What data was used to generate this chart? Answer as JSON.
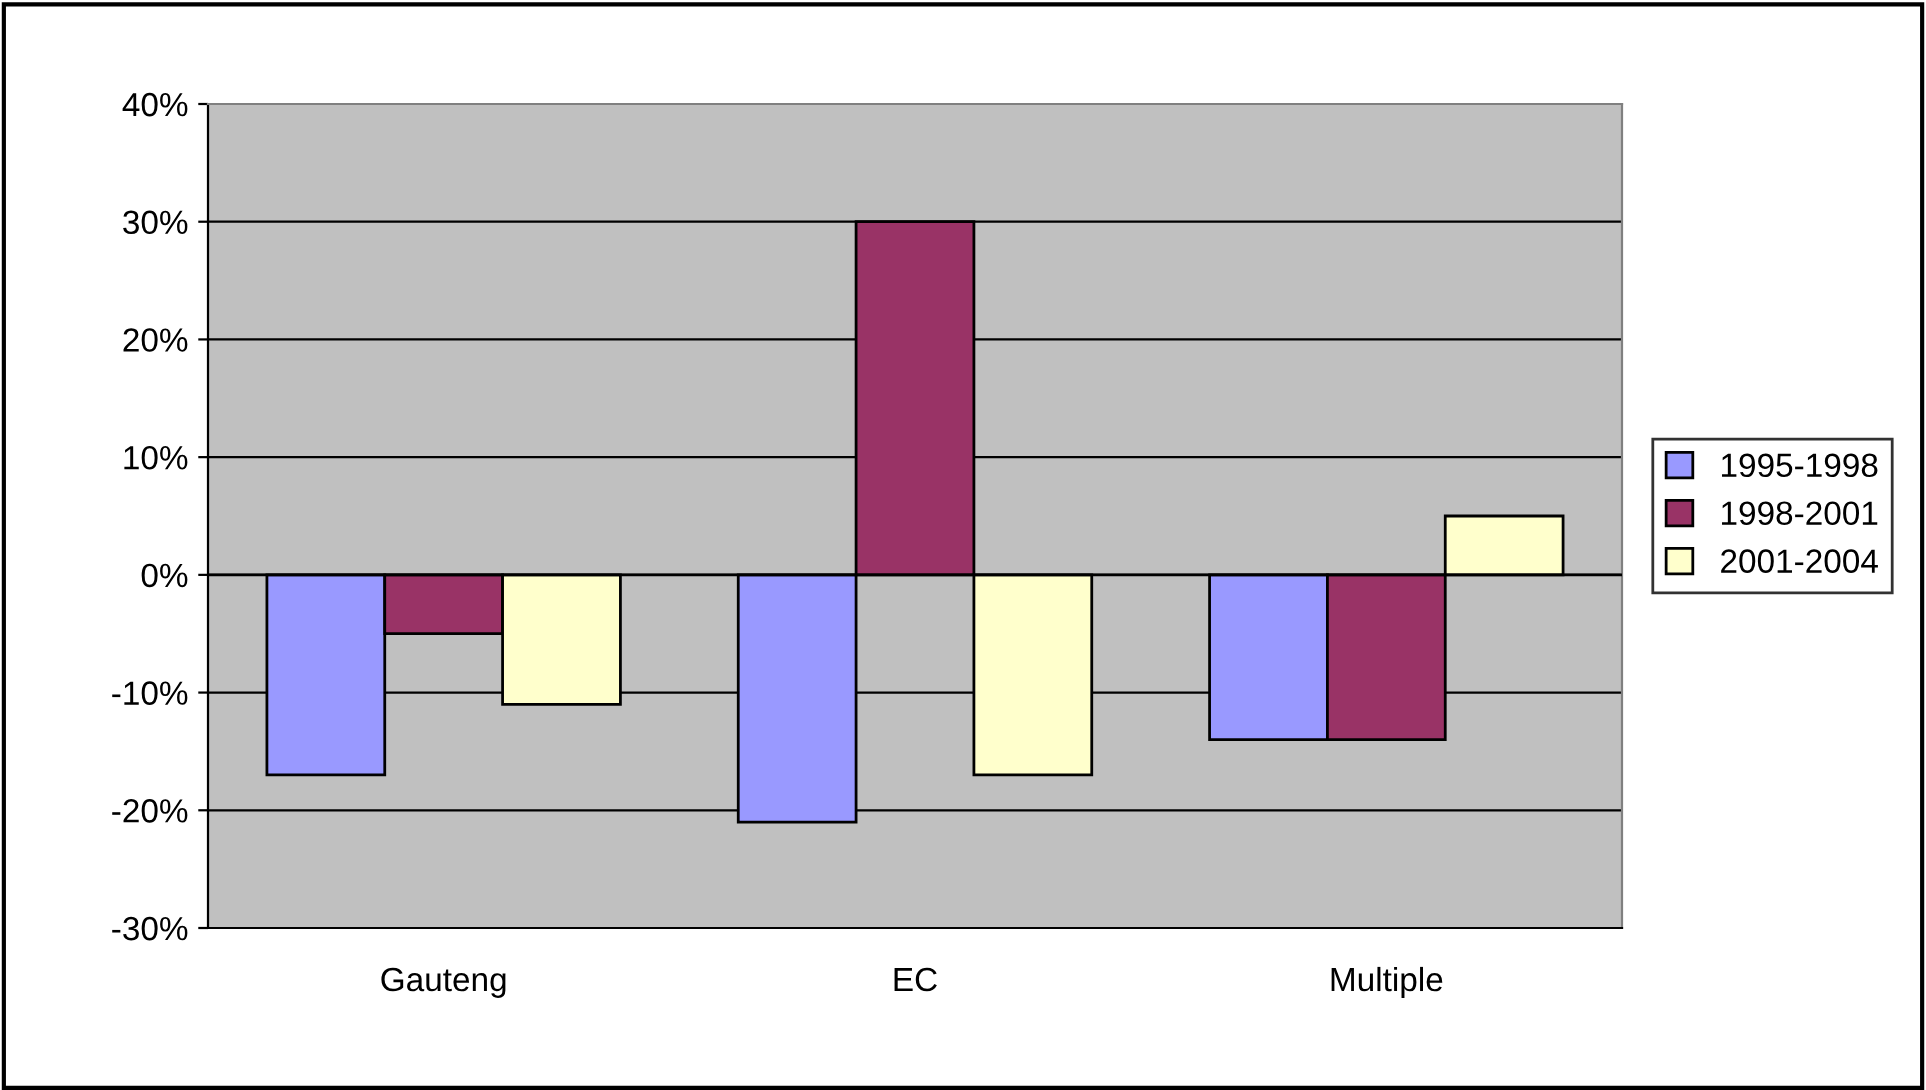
{
  "chart_data": {
    "type": "bar",
    "categories": [
      "Gauteng",
      "EC",
      "Multiple"
    ],
    "series": [
      {
        "name": "1995-1998",
        "color": "#9999ff",
        "values": [
          -17,
          -21,
          -14
        ]
      },
      {
        "name": "1998-2001",
        "color": "#993366",
        "values": [
          -5,
          30,
          -14
        ]
      },
      {
        "name": "2001-2004",
        "color": "#ffffcc",
        "values": [
          -11,
          -17,
          5
        ]
      }
    ],
    "ylim": [
      -30,
      40
    ],
    "yticks": [
      {
        "value": -30,
        "label": "-30%"
      },
      {
        "value": -20,
        "label": "-20%"
      },
      {
        "value": -10,
        "label": "-10%"
      },
      {
        "value": 0,
        "label": "0%"
      },
      {
        "value": 10,
        "label": "10%"
      },
      {
        "value": 20,
        "label": "20%"
      },
      {
        "value": 30,
        "label": "30%"
      },
      {
        "value": 40,
        "label": "40%"
      }
    ],
    "grid": "y",
    "legend": "right"
  }
}
